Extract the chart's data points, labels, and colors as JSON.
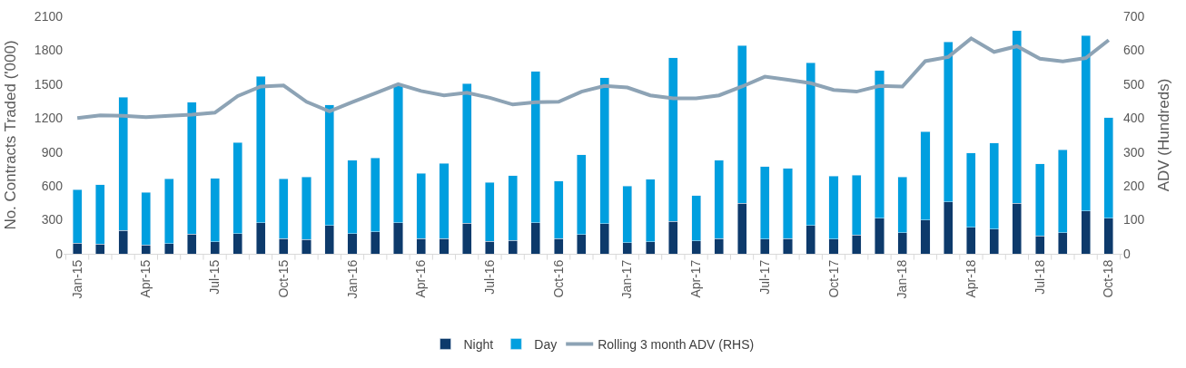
{
  "chart_data": {
    "type": "bar",
    "stacked": true,
    "categories": [
      "Jan-15",
      null,
      null,
      "Apr-15",
      null,
      null,
      "Jul-15",
      null,
      null,
      "Oct-15",
      null,
      null,
      "Jan-16",
      null,
      null,
      "Apr-16",
      null,
      null,
      "Jul-16",
      null,
      null,
      "Oct-16",
      null,
      null,
      "Jan-17",
      null,
      null,
      "Apr-17",
      null,
      null,
      "Jul-17",
      null,
      null,
      "Oct-17",
      null,
      null,
      "Jan-18",
      null,
      null,
      "Apr-18",
      null,
      null,
      "Jul-18",
      null,
      null,
      "Oct-18"
    ],
    "ylabel": "No. Contracts Traded ('000)",
    "y2label": "ADV (Hundreds)",
    "ylim": [
      0,
      2100
    ],
    "yticks": [
      0,
      300,
      600,
      900,
      1200,
      1500,
      1800,
      2100
    ],
    "y2lim": [
      0,
      700
    ],
    "y2ticks": [
      0,
      100,
      200,
      300,
      400,
      500,
      600,
      700
    ],
    "legend": "bottom",
    "series": [
      {
        "name": "Night",
        "color": "#0d3a6b",
        "values": [
          95,
          85,
          205,
          80,
          90,
          175,
          105,
          180,
          275,
          135,
          125,
          250,
          180,
          195,
          275,
          135,
          135,
          270,
          110,
          120,
          275,
          135,
          170,
          265,
          100,
          105,
          285,
          115,
          135,
          445,
          130,
          135,
          250,
          130,
          165,
          315,
          185,
          300,
          460,
          235,
          220,
          445,
          160,
          185,
          380,
          315
        ]
      },
      {
        "name": "Day",
        "color": "#009fdf",
        "values": [
          472,
          527,
          1180,
          465,
          573,
          1165,
          563,
          805,
          1295,
          530,
          553,
          1065,
          648,
          653,
          1215,
          575,
          663,
          1235,
          523,
          570,
          1340,
          508,
          705,
          1293,
          500,
          555,
          1448,
          400,
          692,
          1395,
          640,
          622,
          1440,
          558,
          532,
          1308,
          493,
          780,
          1413,
          655,
          758,
          1530,
          635,
          733,
          1550,
          890
        ]
      },
      {
        "name": "Rolling 3 month ADV (RHS)",
        "type": "line",
        "axis": "y2",
        "color": "#8da3b5",
        "marker": "none",
        "line_style": "solid",
        "values": [
          400,
          408,
          407,
          403,
          407,
          410,
          416,
          465,
          493,
          496,
          448,
          420,
          447,
          473,
          500,
          480,
          467,
          475,
          460,
          440,
          447,
          448,
          478,
          495,
          490,
          467,
          458,
          458,
          467,
          493,
          522,
          513,
          503,
          483,
          478,
          495,
          493,
          568,
          580,
          635,
          595,
          612,
          575,
          567,
          577,
          630
        ]
      }
    ]
  }
}
